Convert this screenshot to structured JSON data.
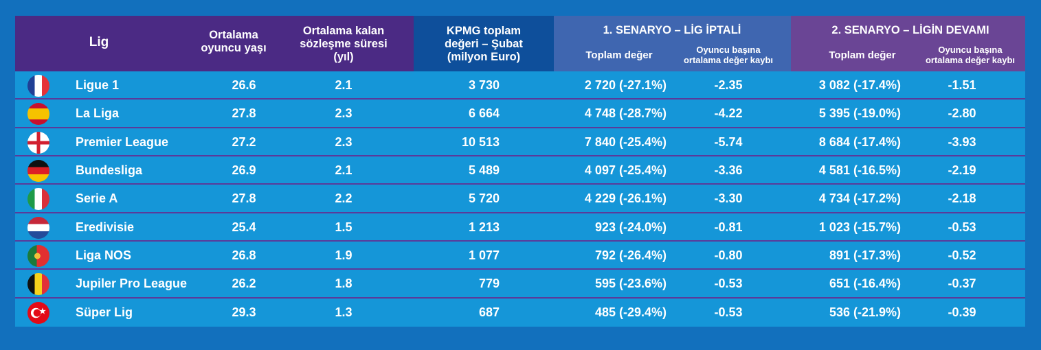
{
  "header": {
    "league": "Lig",
    "avg_age": [
      "Ortalama",
      "oyuncu yaşı"
    ],
    "contract": [
      "Ortalama kalan",
      "sözleşme süresi",
      "(yıl)"
    ],
    "kpmg": [
      "KPMG toplam",
      "değeri – Şubat",
      "(milyon Euro)"
    ],
    "scenario1": {
      "title": "1. SENARYO – LİG İPTALİ",
      "total": "Toplam değer",
      "loss": [
        "Oyuncu başına",
        "ortalama değer kaybı"
      ]
    },
    "scenario2": {
      "title": "2. SENARYO – LİGİN DEVAMI",
      "total": "Toplam değer",
      "loss": [
        "Oyuncu başına",
        "ortalama değer kaybı"
      ]
    }
  },
  "colors": {
    "background": "#1270bd",
    "header_purple": "#4b2a84",
    "kpmg_header": "#0e4f9b",
    "scenario1_header": "#3f66b0",
    "scenario2_header": "#6a4595",
    "row": "#1596d8",
    "separator": "#5a3a9a"
  },
  "rows": [
    {
      "flag": "france-flag",
      "league": "Ligue 1",
      "age": "26.6",
      "contract": "2.1",
      "kpmg": "3 730",
      "s1_total": "2 720 (-27.1%)",
      "s1_loss": "-2.35",
      "s2_total": "3 082 (-17.4%)",
      "s2_loss": "-1.51"
    },
    {
      "flag": "spain-flag",
      "league": "La Liga",
      "age": "27.8",
      "contract": "2.3",
      "kpmg": "6 664",
      "s1_total": "4 748 (-28.7%)",
      "s1_loss": "-4.22",
      "s2_total": "5 395 (-19.0%)",
      "s2_loss": "-2.80"
    },
    {
      "flag": "england-flag",
      "league": "Premier League",
      "age": "27.2",
      "contract": "2.3",
      "kpmg": "10 513",
      "s1_total": "7 840 (-25.4%)",
      "s1_loss": "-5.74",
      "s2_total": "8 684 (-17.4%)",
      "s2_loss": "-3.93"
    },
    {
      "flag": "germany-flag",
      "league": "Bundesliga",
      "age": "26.9",
      "contract": "2.1",
      "kpmg": "5 489",
      "s1_total": "4 097 (-25.4%)",
      "s1_loss": "-3.36",
      "s2_total": "4 581 (-16.5%)",
      "s2_loss": "-2.19"
    },
    {
      "flag": "italy-flag",
      "league": "Serie A",
      "age": "27.8",
      "contract": "2.2",
      "kpmg": "5 720",
      "s1_total": "4 229 (-26.1%)",
      "s1_loss": "-3.30",
      "s2_total": "4 734 (-17.2%)",
      "s2_loss": "-2.18"
    },
    {
      "flag": "netherlands-flag",
      "league": "Eredivisie",
      "age": "25.4",
      "contract": "1.5",
      "kpmg": "1 213",
      "s1_total": "923 (-24.0%)",
      "s1_loss": "-0.81",
      "s2_total": "1 023 (-15.7%)",
      "s2_loss": "-0.53"
    },
    {
      "flag": "portugal-flag",
      "league": "Liga NOS",
      "age": "26.8",
      "contract": "1.9",
      "kpmg": "1 077",
      "s1_total": "792 (-26.4%)",
      "s1_loss": "-0.80",
      "s2_total": "891 (-17.3%)",
      "s2_loss": "-0.52"
    },
    {
      "flag": "belgium-flag",
      "league": "Jupiler Pro League",
      "age": "26.2",
      "contract": "1.8",
      "kpmg": "779",
      "s1_total": "595 (-23.6%)",
      "s1_loss": "-0.53",
      "s2_total": "651 (-16.4%)",
      "s2_loss": "-0.37"
    },
    {
      "flag": "turkey-flag",
      "league": "Süper Lig",
      "age": "29.3",
      "contract": "1.3",
      "kpmg": "687",
      "s1_total": "485 (-29.4%)",
      "s1_loss": "-0.53",
      "s2_total": "536 (-21.9%)",
      "s2_loss": "-0.39"
    }
  ]
}
